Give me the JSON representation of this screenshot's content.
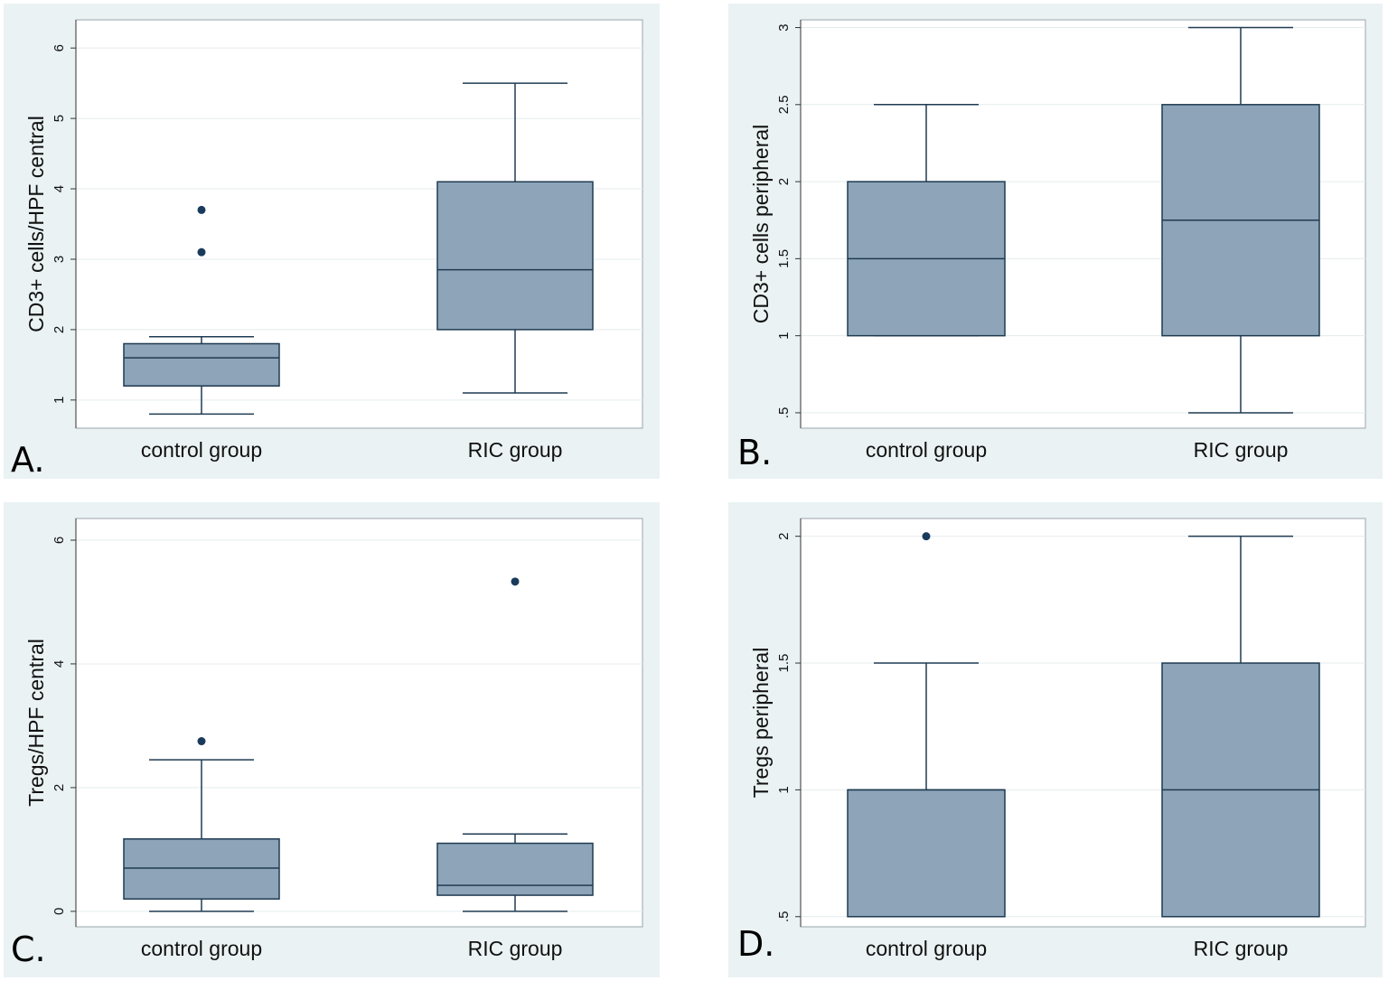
{
  "colors": {
    "box_fill": "#8ea4b8",
    "box_stroke": "#1f3b52",
    "outlier": "#1a3a5c",
    "grid": "#e4ecee",
    "frame_bg": "#eaf2f3"
  },
  "chart_data": [
    {
      "panel_label": "A.",
      "type": "box",
      "ylabel": "CD3+ cells/HPF central",
      "ylim": [
        0.6,
        6.4
      ],
      "yticks": [
        1,
        2,
        3,
        4,
        5,
        6
      ],
      "ytick_labels": [
        "1",
        "2",
        "3",
        "4",
        "5",
        "6"
      ],
      "categories": [
        "control group",
        "RIC group"
      ],
      "boxes": [
        {
          "min": 0.8,
          "q1": 1.2,
          "median": 1.6,
          "q3": 1.8,
          "max": 1.9,
          "outliers": [
            3.1,
            3.7
          ]
        },
        {
          "min": 1.1,
          "q1": 2.0,
          "median": 2.85,
          "q3": 4.1,
          "max": 5.5,
          "outliers": []
        }
      ]
    },
    {
      "panel_label": "B.",
      "type": "box",
      "ylabel": "CD3+ cells peripheral",
      "ylim": [
        0.4,
        3.05
      ],
      "yticks": [
        0.5,
        1,
        1.5,
        2,
        2.5,
        3
      ],
      "ytick_labels": [
        ".5",
        "1",
        "1.5",
        "2",
        "2.5",
        "3"
      ],
      "categories": [
        "control group",
        "RIC group"
      ],
      "boxes": [
        {
          "min": 1.0,
          "q1": 1.0,
          "median": 1.5,
          "q3": 2.0,
          "max": 2.5,
          "outliers": []
        },
        {
          "min": 0.5,
          "q1": 1.0,
          "median": 1.75,
          "q3": 2.5,
          "max": 3.0,
          "outliers": []
        }
      ]
    },
    {
      "panel_label": "C.",
      "type": "box",
      "ylabel": "Tregs/HPF central",
      "ylim": [
        -0.25,
        6.35
      ],
      "yticks": [
        0,
        2,
        4,
        6
      ],
      "ytick_labels": [
        "0",
        "2",
        "4",
        "6"
      ],
      "categories": [
        "control group",
        "RIC group"
      ],
      "boxes": [
        {
          "min": 0.0,
          "q1": 0.2,
          "median": 0.7,
          "q3": 1.17,
          "max": 2.45,
          "outliers": [
            2.75
          ]
        },
        {
          "min": 0.0,
          "q1": 0.26,
          "median": 0.42,
          "q3": 1.1,
          "max": 1.25,
          "outliers": [
            5.33
          ]
        }
      ]
    },
    {
      "panel_label": "D.",
      "type": "box",
      "ylabel": "Tregs peripheral",
      "ylim": [
        0.46,
        2.07
      ],
      "yticks": [
        0.5,
        1,
        1.5,
        2
      ],
      "ytick_labels": [
        ".5",
        "1",
        "1.5",
        "2"
      ],
      "categories": [
        "control group",
        "RIC group"
      ],
      "boxes": [
        {
          "min": 0.5,
          "q1": 0.5,
          "median": 1.0,
          "q3": 1.0,
          "max": 1.5,
          "outliers": [
            2.0
          ]
        },
        {
          "min": 0.5,
          "q1": 0.5,
          "median": 1.0,
          "q3": 1.5,
          "max": 2.0,
          "outliers": []
        }
      ]
    }
  ]
}
